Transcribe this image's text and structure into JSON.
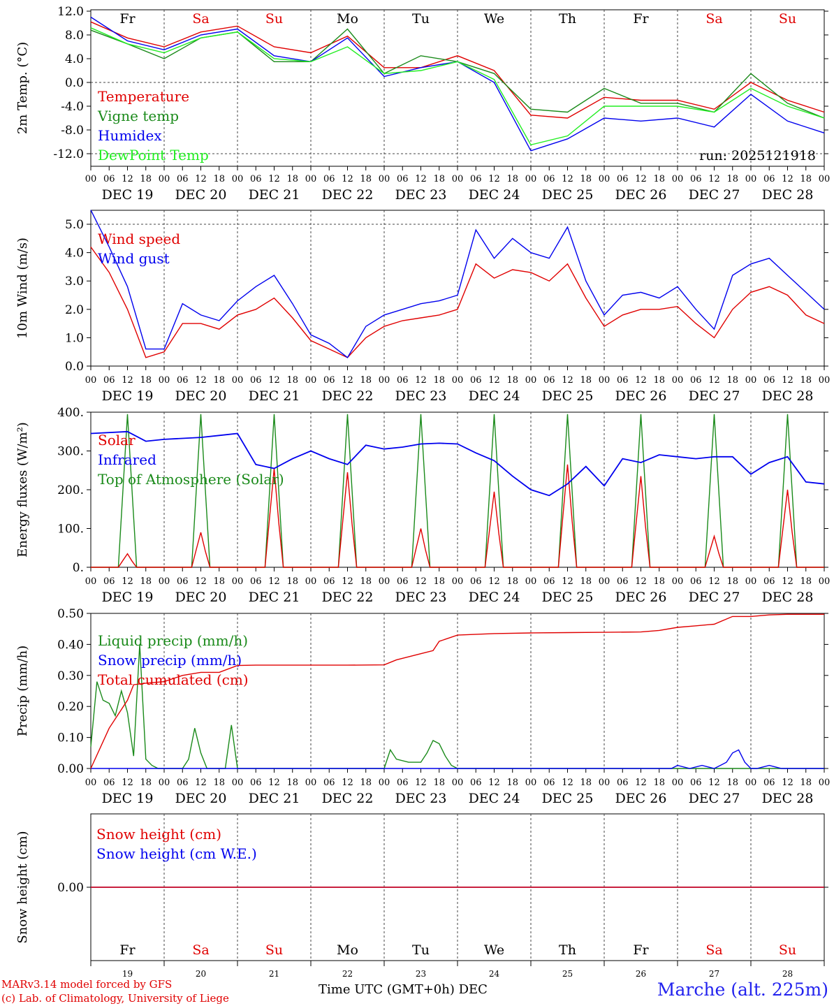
{
  "chart_data": [
    {
      "type": "line",
      "ylabel": "2m Temp. (°C)",
      "ylim": [
        -14,
        12
      ],
      "yticks": [
        "12.0",
        "8.0",
        "4.0",
        "0.0",
        "-4.0",
        "-8.0",
        "-12.0"
      ],
      "ytick_values": [
        12,
        8,
        4,
        0,
        -4,
        -8,
        -12
      ],
      "run_label": "run: 2025121918",
      "x_hours": [
        0,
        12,
        24,
        36,
        48,
        60,
        72,
        84,
        96,
        108,
        120,
        132,
        144,
        156,
        168,
        180,
        192,
        204,
        216,
        228,
        240
      ],
      "series": [
        {
          "name": "Temperature",
          "color": "#e00000",
          "values": [
            10.2,
            7.5,
            6.0,
            8.5,
            9.5,
            6.0,
            5.0,
            7.8,
            2.5,
            2.5,
            4.5,
            2.0,
            -5.5,
            -6.0,
            -2.5,
            -3.0,
            -3.0,
            -4.5,
            0.0,
            -3.0,
            -5.0
          ]
        },
        {
          "name": "Vigne temp",
          "color": "#1a8a1a",
          "values": [
            8.8,
            6.5,
            4.0,
            7.5,
            8.5,
            3.5,
            3.5,
            9.0,
            1.5,
            4.5,
            3.5,
            1.5,
            -4.5,
            -5.0,
            -1.0,
            -3.5,
            -3.5,
            -5.0,
            1.5,
            -3.5,
            -6.0
          ]
        },
        {
          "name": "Humidex",
          "color": "#0000ee",
          "values": [
            11.0,
            7.0,
            5.5,
            8.0,
            9.0,
            4.5,
            3.5,
            7.5,
            1.0,
            2.5,
            3.5,
            0.0,
            -11.5,
            -9.5,
            -6.0,
            -6.5,
            -6.0,
            -7.5,
            -2.0,
            -6.5,
            -8.5
          ]
        },
        {
          "name": "DewPoint Temp",
          "color": "#22ee22",
          "values": [
            9.2,
            6.5,
            5.0,
            7.5,
            8.5,
            4.0,
            3.5,
            6.0,
            1.5,
            2.0,
            3.5,
            0.5,
            -10.5,
            -9.0,
            -4.0,
            -4.0,
            -4.0,
            -5.0,
            -1.0,
            -4.0,
            -6.0
          ]
        }
      ]
    },
    {
      "type": "line",
      "ylabel": "10m Wind (m/s)",
      "ylim": [
        0,
        5.5
      ],
      "yticks": [
        "5.0",
        "4.0",
        "3.0",
        "2.0",
        "1.0",
        "0.0"
      ],
      "ytick_values": [
        5,
        4,
        3,
        2,
        1,
        0
      ],
      "dashed_ref": 5.0,
      "x_hours": [
        0,
        6,
        12,
        18,
        24,
        30,
        36,
        42,
        48,
        54,
        60,
        66,
        72,
        78,
        84,
        90,
        96,
        102,
        108,
        114,
        120,
        126,
        132,
        138,
        144,
        150,
        156,
        162,
        168,
        174,
        180,
        186,
        192,
        198,
        204,
        210,
        216,
        222,
        228,
        234,
        240
      ],
      "series": [
        {
          "name": "Wind speed",
          "color": "#e00000",
          "values": [
            4.2,
            3.3,
            2.0,
            0.3,
            0.5,
            1.5,
            1.5,
            1.3,
            1.8,
            2.0,
            2.4,
            1.7,
            0.9,
            0.6,
            0.3,
            1.0,
            1.4,
            1.6,
            1.7,
            1.8,
            2.0,
            3.6,
            3.1,
            3.4,
            3.3,
            3.0,
            3.6,
            2.4,
            1.4,
            1.8,
            2.0,
            2.0,
            2.1,
            1.5,
            1.0,
            2.0,
            2.6,
            2.8,
            2.5,
            1.8,
            1.5
          ]
        },
        {
          "name": "Wind gust",
          "color": "#0000ee",
          "values": [
            5.5,
            4.2,
            2.8,
            0.6,
            0.6,
            2.2,
            1.8,
            1.6,
            2.3,
            2.8,
            3.2,
            2.2,
            1.1,
            0.8,
            0.3,
            1.4,
            1.8,
            2.0,
            2.2,
            2.3,
            2.5,
            4.8,
            3.8,
            4.5,
            4.0,
            3.8,
            4.9,
            3.0,
            1.8,
            2.5,
            2.6,
            2.4,
            2.8,
            2.0,
            1.3,
            3.2,
            3.6,
            3.8,
            3.2,
            2.6,
            2.0
          ]
        }
      ]
    },
    {
      "type": "line",
      "ylabel": "Energy fluxes (W/m²)",
      "ylim": [
        0,
        400
      ],
      "yticks": [
        "400.",
        "300.",
        "200.",
        "100.",
        "0."
      ],
      "ytick_values": [
        400,
        300,
        200,
        100,
        0
      ],
      "days_solar_peak": [
        35,
        90,
        255,
        245,
        100,
        195,
        265,
        235,
        80,
        200
      ],
      "toa_peak": 395,
      "infrared_hours": [
        0,
        12,
        18,
        24,
        36,
        42,
        48,
        54,
        60,
        66,
        72,
        78,
        84,
        90,
        96,
        102,
        108,
        114,
        120,
        126,
        132,
        138,
        144,
        150,
        156,
        162,
        168,
        174,
        180,
        186,
        192,
        198,
        204,
        210,
        216,
        222,
        228,
        234,
        240
      ],
      "infrared_values": [
        345,
        350,
        325,
        330,
        335,
        340,
        345,
        265,
        255,
        280,
        300,
        280,
        265,
        315,
        305,
        310,
        318,
        320,
        318,
        295,
        275,
        235,
        200,
        185,
        215,
        260,
        210,
        280,
        270,
        290,
        285,
        280,
        285,
        285,
        240,
        270,
        285,
        220,
        215
      ],
      "series": [
        {
          "name": "Solar",
          "color": "#e00000"
        },
        {
          "name": "Infrared",
          "color": "#0000ee"
        },
        {
          "name": "Top of Atmosphere (Solar)",
          "color": "#1a8a1a"
        }
      ]
    },
    {
      "type": "line",
      "ylabel": "Precip (mm/h)",
      "ylim": [
        0,
        0.5
      ],
      "yticks": [
        "0.50",
        "0.40",
        "0.30",
        "0.20",
        "0.10",
        "0.00"
      ],
      "ytick_values": [
        0.5,
        0.4,
        0.3,
        0.2,
        0.1,
        0.0
      ],
      "series": [
        {
          "name": "Liquid precip (mm/h)",
          "color": "#1a8a1a",
          "x_hours": [
            0,
            2,
            4,
            6,
            8,
            10,
            12,
            14,
            16,
            18,
            20,
            22,
            24,
            30,
            32,
            34,
            36,
            38,
            40,
            42,
            44,
            46,
            48,
            50,
            52,
            96,
            98,
            100,
            104,
            108,
            110,
            112,
            114,
            116,
            118,
            120,
            126,
            240
          ],
          "values": [
            0.07,
            0.28,
            0.22,
            0.21,
            0.17,
            0.25,
            0.18,
            0.04,
            0.4,
            0.03,
            0.01,
            0.0,
            0.0,
            0.0,
            0.03,
            0.13,
            0.05,
            0.0,
            0.0,
            0.0,
            0.0,
            0.14,
            0.0,
            0.0,
            0.0,
            0.0,
            0.06,
            0.03,
            0.02,
            0.02,
            0.05,
            0.09,
            0.08,
            0.04,
            0.01,
            0.0,
            0.0,
            0.0
          ]
        },
        {
          "name": "Snow precip (mm/h)",
          "color": "#0000ee",
          "x_hours": [
            0,
            190,
            192,
            196,
            200,
            204,
            206,
            208,
            210,
            212,
            214,
            216,
            218,
            220,
            222,
            224,
            226,
            240
          ],
          "values": [
            0.0,
            0.0,
            0.01,
            0.0,
            0.01,
            0.0,
            0.01,
            0.02,
            0.05,
            0.06,
            0.02,
            0.0,
            0.0,
            0.005,
            0.01,
            0.005,
            0.0,
            0.0
          ]
        },
        {
          "name": "Total cumulated (cm)",
          "color": "#e00000",
          "x_hours": [
            0,
            6,
            12,
            14,
            18,
            24,
            30,
            36,
            42,
            48,
            54,
            60,
            72,
            84,
            96,
            100,
            108,
            112,
            114,
            120,
            132,
            144,
            156,
            168,
            180,
            186,
            192,
            198,
            204,
            210,
            216,
            222,
            228,
            240
          ],
          "values": [
            0.0,
            0.13,
            0.22,
            0.27,
            0.275,
            0.28,
            0.3,
            0.31,
            0.31,
            0.332,
            0.333,
            0.333,
            0.333,
            0.333,
            0.334,
            0.35,
            0.37,
            0.38,
            0.41,
            0.43,
            0.435,
            0.437,
            0.438,
            0.439,
            0.44,
            0.445,
            0.455,
            0.46,
            0.465,
            0.49,
            0.49,
            0.495,
            0.497,
            0.497
          ]
        }
      ]
    },
    {
      "type": "line",
      "ylabel": "Snow height (cm)",
      "ylim": [
        -1,
        1
      ],
      "yticks": [
        "0.00"
      ],
      "ytick_values": [
        0
      ],
      "series": [
        {
          "name": "Snow height (cm)",
          "color": "#e00000",
          "values": [
            0,
            0
          ]
        },
        {
          "name": "Snow height (cm W.E.)",
          "color": "#0000ee",
          "values": [
            0,
            0
          ]
        }
      ]
    }
  ],
  "hour_ticks": [
    "00",
    "06",
    "12",
    "18"
  ],
  "hour_tick_end": "00",
  "date_labels": [
    "DEC 19",
    "DEC 20",
    "DEC 21",
    "DEC 22",
    "DEC 23",
    "DEC 24",
    "DEC 25",
    "DEC 26",
    "DEC 27",
    "DEC 28"
  ],
  "weekdays": [
    {
      "label": "Fr",
      "color": "#000000"
    },
    {
      "label": "Sa",
      "color": "#e00000"
    },
    {
      "label": "Su",
      "color": "#e00000"
    },
    {
      "label": "Mo",
      "color": "#000000"
    },
    {
      "label": "Tu",
      "color": "#000000"
    },
    {
      "label": "We",
      "color": "#000000"
    },
    {
      "label": "Th",
      "color": "#000000"
    },
    {
      "label": "Fr",
      "color": "#000000"
    },
    {
      "label": "Sa",
      "color": "#e00000"
    },
    {
      "label": "Su",
      "color": "#e00000"
    }
  ],
  "bottom_day_numbers": [
    "19",
    "20",
    "21",
    "22",
    "23",
    "24",
    "25",
    "26",
    "27",
    "28"
  ],
  "xlabel": "Time UTC (GMT+0h)",
  "xlabel_month": "DEC",
  "footer": {
    "model_line": "MARv3.14 model forced by GFS",
    "credit_line": "(c) Lab. of Climatology, University of Liege",
    "station": "Marche (alt. 225m)"
  }
}
